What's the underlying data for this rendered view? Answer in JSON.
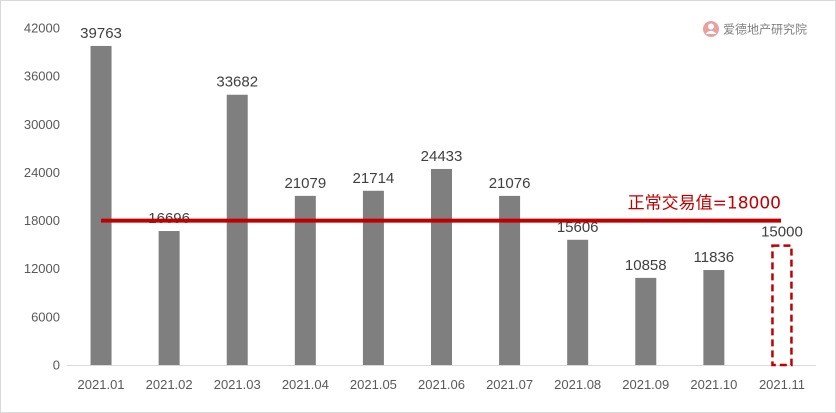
{
  "watermark": {
    "text": "爱德地产研究院",
    "icon": "user-circle-icon",
    "icon_color": "#e8a0a0"
  },
  "chart_data": {
    "type": "bar",
    "title": "",
    "xlabel": "",
    "ylabel": "",
    "categories": [
      "2021.01",
      "2021.02",
      "2021.03",
      "2021.04",
      "2021.05",
      "2021.06",
      "2021.07",
      "2021.08",
      "2021.09",
      "2021.10",
      "2021.11"
    ],
    "values": [
      39763,
      16696,
      33682,
      21079,
      21714,
      24433,
      21076,
      15606,
      10858,
      11836,
      15000
    ],
    "estimated": [
      false,
      false,
      false,
      false,
      false,
      false,
      false,
      false,
      false,
      false,
      true
    ],
    "yticks": [
      "0",
      "6000",
      "12000",
      "18000",
      "24000",
      "30000",
      "36000",
      "42000"
    ],
    "ylim": [
      0,
      42000
    ],
    "grid": false,
    "bar_color": "#7f7f7f",
    "estimate_color": "#c00000",
    "reference_line": {
      "value": 18000,
      "label": "正常交易值=18000",
      "color": "#c00000"
    }
  }
}
